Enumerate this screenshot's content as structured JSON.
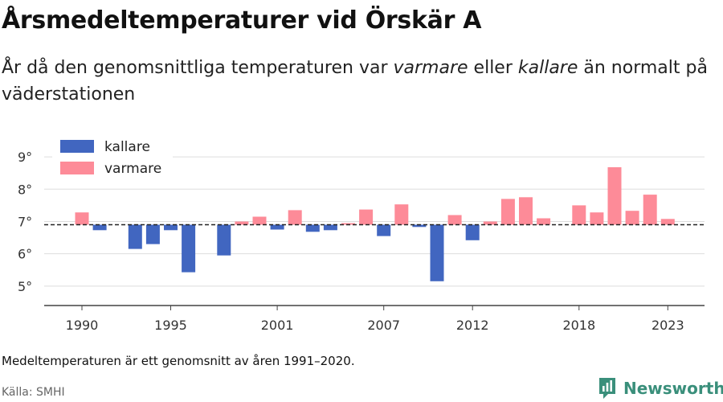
{
  "header": {
    "title": "Årsmedeltemperaturer vid Örskär A",
    "subtitle_part1": "År då den genomsnittliga temperaturen var ",
    "subtitle_em1": "varmare",
    "subtitle_part2": " eller ",
    "subtitle_em2": "kallare",
    "subtitle_part3": " än normalt på väderstationen"
  },
  "footer": {
    "note": "Medeltemperaturen är ett genomsnitt av åren 1991–2020.",
    "source": "Källa: SMHI",
    "brand": "Newsworthy"
  },
  "colors": {
    "colder": "#4166c0",
    "warmer": "#fd8b98",
    "brand": "#3a8f7b",
    "grid": "#dddddd",
    "axis": "#444444"
  },
  "chart_data": {
    "type": "bar",
    "title": "Årsmedeltemperaturer vid Örskär A",
    "baseline": 6.9,
    "baseline_style": "dashed",
    "ylim": [
      4.4,
      9.5
    ],
    "yticks": [
      5,
      6,
      7,
      8,
      9
    ],
    "ytick_labels": [
      "5°",
      "6°",
      "7°",
      "8°",
      "9°"
    ],
    "xticks": [
      1990,
      1995,
      2001,
      2007,
      2012,
      2018,
      2023
    ],
    "legend": [
      {
        "key": "colder",
        "label": "kallare"
      },
      {
        "key": "warmer",
        "label": "varmare"
      }
    ],
    "legend_position": "top-left",
    "years": [
      1990,
      1991,
      1992,
      1993,
      1994,
      1995,
      1996,
      1997,
      1998,
      1999,
      2000,
      2001,
      2002,
      2003,
      2004,
      2005,
      2006,
      2007,
      2008,
      2009,
      2010,
      2011,
      2012,
      2013,
      2014,
      2015,
      2016,
      2017,
      2018,
      2019,
      2020,
      2021,
      2022,
      2023
    ],
    "values": [
      7.28,
      6.73,
      null,
      6.15,
      6.3,
      6.73,
      5.43,
      null,
      5.95,
      7.0,
      7.15,
      6.75,
      7.35,
      6.68,
      6.73,
      6.95,
      7.37,
      6.55,
      7.53,
      6.83,
      5.15,
      7.2,
      6.42,
      7.0,
      7.7,
      7.75,
      7.1,
      null,
      7.5,
      7.28,
      8.68,
      7.33,
      7.83,
      7.08
    ]
  }
}
